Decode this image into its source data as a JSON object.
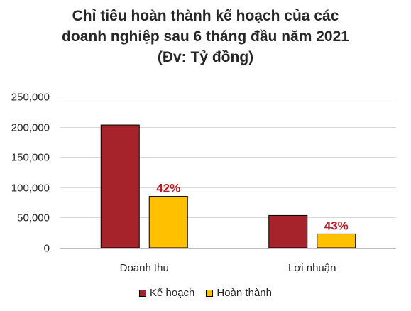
{
  "chart_data": {
    "type": "bar",
    "title_lines": [
      "Chỉ tiêu hoàn thành kế hoạch của các",
      "doanh nghiệp sau 6 tháng đầu năm 2021",
      "(Đv: Tỷ đồng)"
    ],
    "categories": [
      "Doanh thu",
      "Lợi nhuận"
    ],
    "series": [
      {
        "name": "Kế hoạch",
        "values": [
          203000,
          53500
        ],
        "color": "#A6232B"
      },
      {
        "name": "Hoàn thành",
        "values": [
          85000,
          23000
        ],
        "color": "#FFC000"
      }
    ],
    "data_labels": {
      "series_index": 1,
      "labels": [
        "42%",
        "43%"
      ],
      "color": "#B2202A"
    },
    "ylim": [
      0,
      250000
    ],
    "yticks": [
      0,
      50000,
      100000,
      150000,
      200000,
      250000
    ],
    "ytick_labels": [
      "0",
      "50,000",
      "100,000",
      "150,000",
      "200,000",
      "250,000"
    ],
    "grid": true,
    "legend_position": "bottom"
  }
}
